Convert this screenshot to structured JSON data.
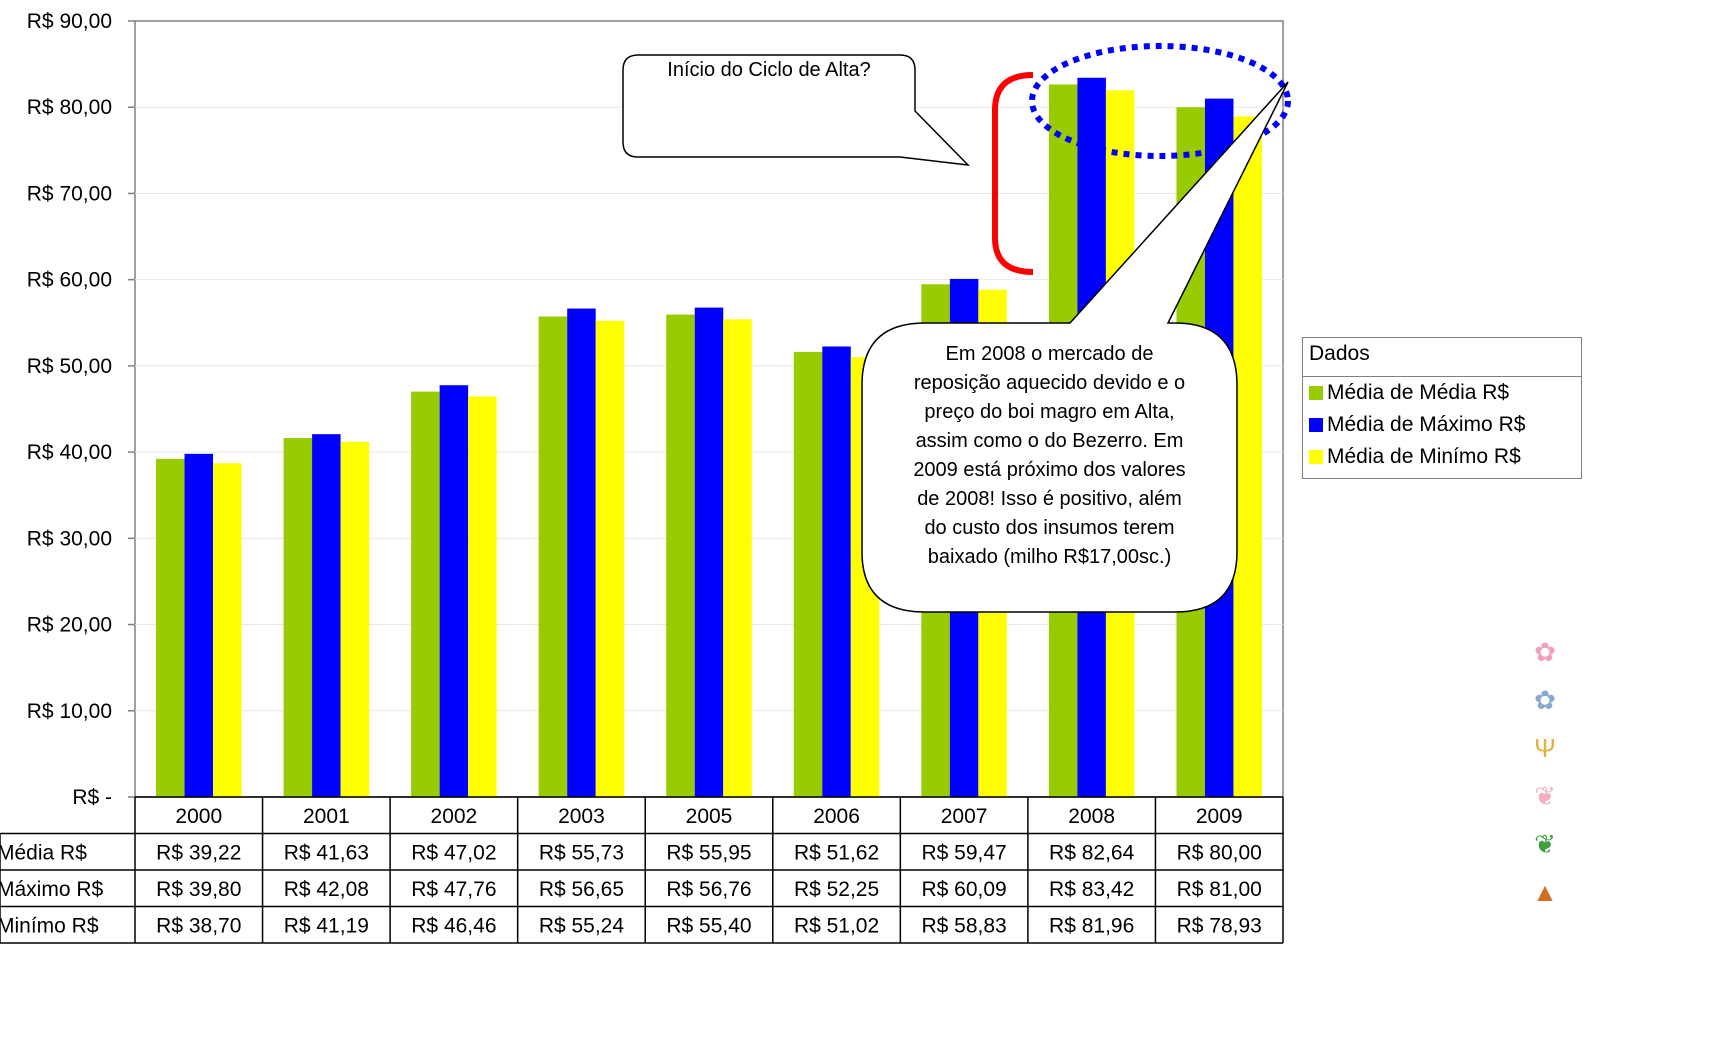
{
  "chart_data": {
    "type": "bar",
    "categories": [
      "2000",
      "2001",
      "2002",
      "2003",
      "2005",
      "2006",
      "2007",
      "2008",
      "2009"
    ],
    "series": [
      {
        "name": "Média de Média R$",
        "row_label": "Média R$",
        "color": "#99cc00",
        "values": [
          39.22,
          41.63,
          47.02,
          55.73,
          55.95,
          51.62,
          59.47,
          82.64,
          80.0
        ],
        "labels": [
          "R$ 39,22",
          "R$ 41,63",
          "R$ 47,02",
          "R$ 55,73",
          "R$ 55,95",
          "R$ 51,62",
          "R$ 59,47",
          "R$ 82,64",
          "R$ 80,00"
        ]
      },
      {
        "name": "Média de Máximo R$",
        "row_label": "Máximo R$",
        "color": "#0000ff",
        "values": [
          39.8,
          42.08,
          47.76,
          56.65,
          56.76,
          52.25,
          60.09,
          83.42,
          81.0
        ],
        "labels": [
          "R$ 39,80",
          "R$ 42,08",
          "R$ 47,76",
          "R$ 56,65",
          "R$ 56,76",
          "R$ 52,25",
          "R$ 60,09",
          "R$ 83,42",
          "R$ 81,00"
        ]
      },
      {
        "name": "Média de Minímo R$",
        "row_label": "Minímo R$",
        "color": "#ffff00",
        "values": [
          38.7,
          41.19,
          46.46,
          55.24,
          55.4,
          51.02,
          58.83,
          81.96,
          78.93
        ],
        "labels": [
          "R$ 38,70",
          "R$ 41,19",
          "R$ 46,46",
          "R$ 55,24",
          "R$ 55,40",
          "R$ 51,02",
          "R$ 58,83",
          "R$ 81,96",
          "R$ 78,93"
        ]
      }
    ],
    "ylim": [
      0,
      90
    ],
    "yticks": [
      0,
      10,
      20,
      30,
      40,
      50,
      60,
      70,
      80,
      90
    ],
    "ytick_labels": [
      "R$ -",
      "R$ 10,00",
      "R$ 20,00",
      "R$ 30,00",
      "R$ 40,00",
      "R$ 50,00",
      "R$ 60,00",
      "R$ 70,00",
      "R$ 80,00",
      "R$ 90,00"
    ],
    "grid": true,
    "legend": {
      "title": "Dados",
      "placement": "right"
    },
    "data_table": true,
    "annotations": [
      "Início do Ciclo de Alta?",
      "Em 2008 o mercado de reposição aquecido devido e o preço do boi magro em Alta, assim como o do Bezerro. Em 2009 está próximo dos valores de 2008! Isso é positivo, além do custo dos insumos terem baixado (milho R$17,00sc.)"
    ]
  },
  "legend": {
    "title": "Dados",
    "items": [
      "Média de Média R$",
      "Média de Máximo R$",
      "Média de Minímo R$"
    ]
  },
  "callouts": {
    "top": "Início do Ciclo de Alta?",
    "main_lines": [
      "Em 2008 o mercado de",
      "reposição aquecido devido e o",
      "preço do boi magro em Alta,",
      "assim como o do Bezerro. Em",
      "2009 está próximo dos valores",
      "de 2008! Isso é positivo, além",
      "do custo dos insumos terem",
      "baixado (milho R$17,00sc.)"
    ]
  },
  "icons": [
    "paw-print-pink-icon",
    "paw-print-blue-icon",
    "bird-track-icon",
    "lungs-pink-icon",
    "lungs-green-icon",
    "stomach-orange-icon"
  ]
}
